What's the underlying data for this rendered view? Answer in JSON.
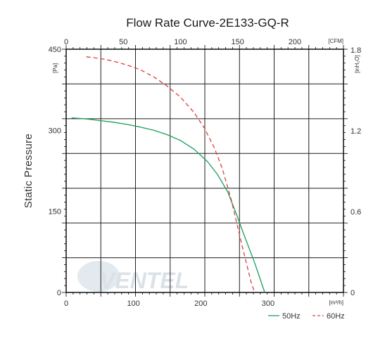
{
  "chart_data": {
    "type": "line",
    "title": "Flow Rate Curve-2E133-GQ-R",
    "ylabel": "Static Pressure",
    "x_unit": "[m³/h]",
    "x_top_unit": "[CFM]",
    "y_unit": "[Pa]",
    "y_right_unit": "[inH₂O]",
    "xlim": [
      0,
      412
    ],
    "ylim": [
      0,
      450
    ],
    "x_ticks": [
      "0",
      "100",
      "200",
      "300"
    ],
    "x_top_ticks": [
      "0",
      "50",
      "100",
      "150",
      "200"
    ],
    "y_ticks": [
      "0",
      "150",
      "300",
      "450"
    ],
    "y_right_ticks": [
      "0",
      "0.6",
      "1.2",
      "1.8"
    ],
    "grid": true,
    "legend_position": "bottom-right",
    "watermark": "VENTEL",
    "series": [
      {
        "name": "50Hz",
        "color": "#1a9e5c",
        "style": "solid",
        "x": [
          8,
          30,
          50,
          70,
          90,
          110,
          130,
          150,
          170,
          190,
          210,
          225,
          240,
          252,
          265,
          280,
          295
        ],
        "y": [
          323,
          321,
          318,
          315,
          311,
          306,
          300,
          292,
          281,
          265,
          242,
          218,
          186,
          148,
          104,
          55,
          0
        ]
      },
      {
        "name": "60Hz",
        "color": "#e03c3c",
        "style": "dashed",
        "x": [
          30,
          50,
          70,
          90,
          110,
          130,
          150,
          170,
          190,
          205,
          220,
          232,
          245,
          255,
          265,
          275,
          280
        ],
        "y": [
          436,
          433,
          428,
          421,
          412,
          399,
          382,
          361,
          333,
          305,
          268,
          229,
          173,
          120,
          68,
          18,
          0
        ]
      }
    ]
  }
}
